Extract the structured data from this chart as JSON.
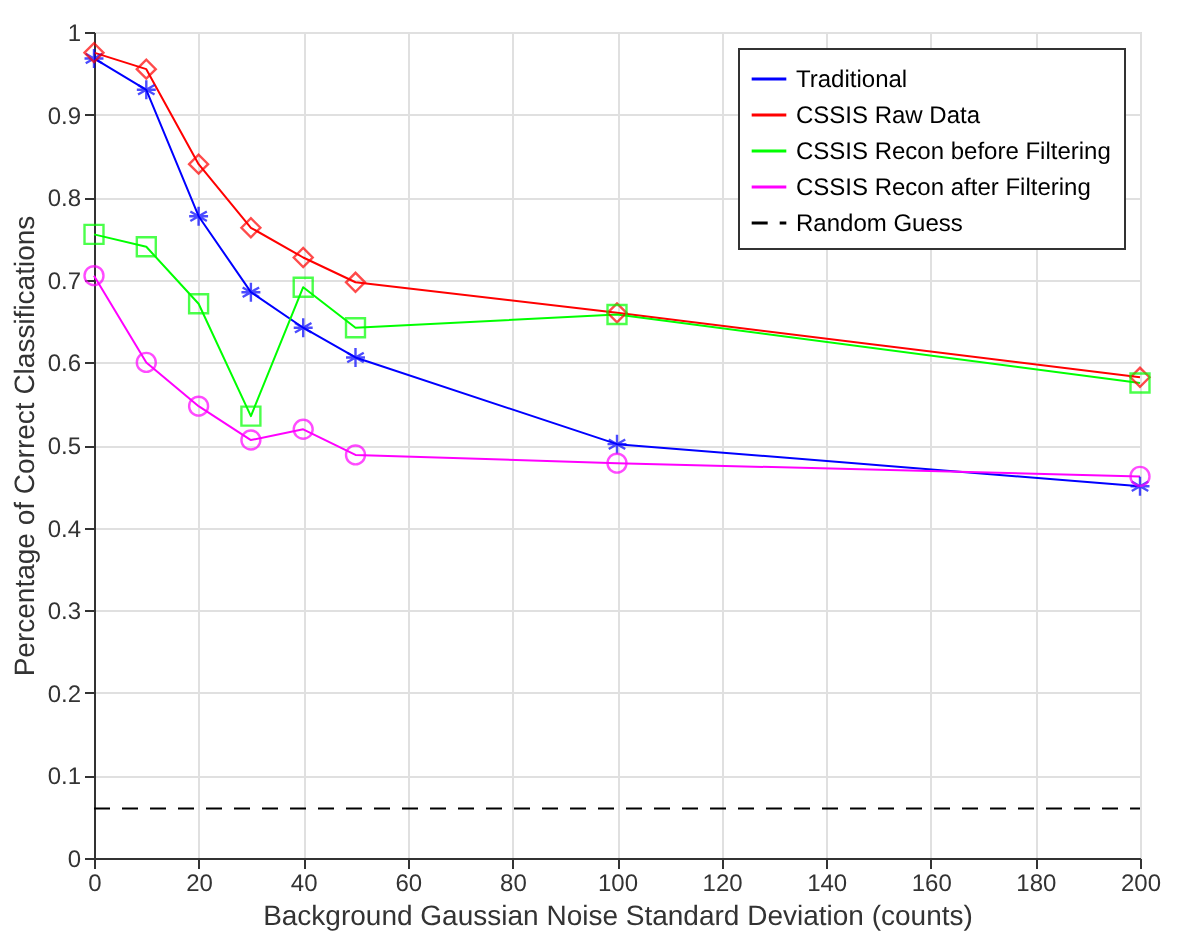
{
  "chart_data": {
    "type": "line",
    "xlabel": "Background Gaussian Noise Standard Deviation (counts)",
    "ylabel": "Percentage of Correct Classifications",
    "x": [
      0,
      10,
      20,
      30,
      40,
      50,
      100,
      200
    ],
    "series": [
      {
        "name": "Traditional",
        "color": "#0000ff",
        "marker": "cross",
        "values": [
          0.968,
          0.93,
          0.777,
          0.685,
          0.642,
          0.606,
          0.501,
          0.45
        ]
      },
      {
        "name": "CSSIS Raw Data",
        "color": "#ff0000",
        "marker": "diamond",
        "values": [
          0.975,
          0.955,
          0.84,
          0.763,
          0.727,
          0.697,
          0.66,
          0.582
        ]
      },
      {
        "name": "CSSIS Recon before Filtering",
        "color": "#00ff00",
        "marker": "square",
        "values": [
          0.755,
          0.74,
          0.671,
          0.535,
          0.691,
          0.642,
          0.658,
          0.575
        ]
      },
      {
        "name": "CSSIS Recon after Filtering",
        "color": "#ff00ff",
        "marker": "circle",
        "values": [
          0.705,
          0.6,
          0.547,
          0.506,
          0.519,
          0.488,
          0.478,
          0.462
        ]
      },
      {
        "name": "Random Guess",
        "color": "#000000",
        "marker": "none",
        "line_style": "dashed",
        "x": [
          0,
          200
        ],
        "values": [
          0.06,
          0.06
        ]
      }
    ],
    "xlim": [
      0,
      200
    ],
    "xticks": [
      0,
      20,
      40,
      60,
      80,
      100,
      120,
      140,
      160,
      180,
      200
    ],
    "ylim": [
      0,
      1
    ],
    "yticks": [
      0,
      0.1,
      0.2,
      0.3,
      0.4,
      0.5,
      0.6,
      0.7,
      0.8,
      0.9,
      1
    ],
    "grid": true,
    "legend": "top right",
    "line_style": "solid"
  }
}
